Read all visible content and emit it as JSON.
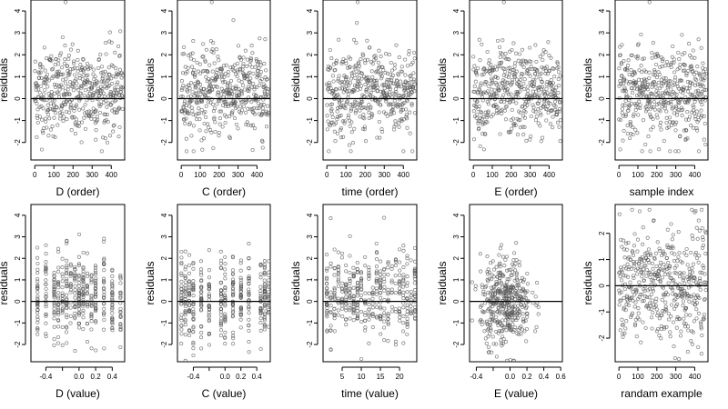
{
  "chart_data": [
    {
      "type": "scatter",
      "ylabel": "residuals",
      "xlabel": "D (order)",
      "xlim": [
        -20,
        470
      ],
      "ylim": [
        -2.8,
        4.5
      ],
      "xticks": [
        0,
        100,
        200,
        300,
        400
      ],
      "yticks": [
        -2,
        -1,
        0,
        1,
        2,
        3,
        4
      ],
      "reference_line_y": 0,
      "points": {
        "distribution": "sequential",
        "n": 460,
        "x_range": [
          0,
          460
        ],
        "y_mean": 0.3,
        "y_sd": 1.0,
        "y_min": -2.4,
        "y_max": 4.4
      }
    },
    {
      "type": "scatter",
      "ylabel": "residuals",
      "xlabel": "C (order)",
      "xlim": [
        -20,
        470
      ],
      "ylim": [
        -2.8,
        4.5
      ],
      "xticks": [
        0,
        100,
        200,
        300,
        400
      ],
      "yticks": [
        -2,
        -1,
        0,
        1,
        2,
        3,
        4
      ],
      "reference_line_y": 0,
      "points": {
        "distribution": "sequential",
        "n": 460,
        "x_range": [
          0,
          460
        ],
        "y_mean": 0.3,
        "y_sd": 1.0,
        "y_min": -2.4,
        "y_max": 4.4
      }
    },
    {
      "type": "scatter",
      "ylabel": "residuals",
      "xlabel": "time (order)",
      "xlim": [
        -20,
        470
      ],
      "ylim": [
        -2.8,
        4.5
      ],
      "xticks": [
        0,
        100,
        200,
        300,
        400
      ],
      "yticks": [
        -2,
        -1,
        0,
        1,
        2,
        3,
        4
      ],
      "reference_line_y": 0,
      "points": {
        "distribution": "sequential",
        "n": 460,
        "x_range": [
          0,
          460
        ],
        "y_mean": 0.3,
        "y_sd": 1.0,
        "y_min": -2.4,
        "y_max": 4.4
      }
    },
    {
      "type": "scatter",
      "ylabel": "residuals",
      "xlabel": "E (order)",
      "xlim": [
        -20,
        470
      ],
      "ylim": [
        -2.8,
        4.5
      ],
      "xticks": [
        0,
        100,
        200,
        300,
        400
      ],
      "yticks": [
        -2,
        -1,
        0,
        1,
        2,
        3,
        4
      ],
      "reference_line_y": 0,
      "points": {
        "distribution": "sequential",
        "n": 460,
        "x_range": [
          0,
          460
        ],
        "y_mean": 0.3,
        "y_sd": 1.0,
        "y_min": -2.4,
        "y_max": 4.4
      }
    },
    {
      "type": "scatter",
      "ylabel": "residuals",
      "xlabel": "sample index",
      "xlim": [
        -20,
        470
      ],
      "ylim": [
        -2.8,
        4.5
      ],
      "xticks": [
        0,
        100,
        200,
        300,
        400
      ],
      "yticks": [
        -2,
        -1,
        0,
        1,
        2,
        3,
        4
      ],
      "reference_line_y": 0,
      "points": {
        "distribution": "sequential",
        "n": 460,
        "x_range": [
          0,
          460
        ],
        "y_mean": 0.3,
        "y_sd": 1.0,
        "y_min": -2.4,
        "y_max": 4.4
      }
    },
    {
      "type": "scatter",
      "ylabel": "residuals",
      "xlabel": "D (value)",
      "xlim": [
        -0.58,
        0.55
      ],
      "ylim": [
        -2.8,
        4.5
      ],
      "xticks": [
        -0.4,
        -0.2,
        0.0,
        0.2,
        0.4
      ],
      "xtick_labels": [
        "-0.4",
        "",
        "0.0",
        "0.2",
        "0.4"
      ],
      "yticks": [
        -2,
        -1,
        0,
        1,
        2,
        3,
        4
      ],
      "reference_line_y": 0,
      "points": {
        "distribution": "columns",
        "n": 420,
        "x_range": [
          -0.5,
          0.5
        ],
        "columns": [
          -0.5,
          -0.4,
          -0.3,
          -0.25,
          -0.2,
          -0.15,
          -0.1,
          -0.05,
          0.0,
          0.05,
          0.1,
          0.15,
          0.2,
          0.3,
          0.4,
          0.5
        ],
        "y_mean": 0.2,
        "y_sd": 1.0
      }
    },
    {
      "type": "scatter",
      "ylabel": "residuals",
      "xlabel": "C (value)",
      "xlim": [
        -0.6,
        0.57
      ],
      "ylim": [
        -2.8,
        4.5
      ],
      "xticks": [
        -0.4,
        -0.2,
        0.0,
        0.2,
        0.4
      ],
      "xtick_labels": [
        "-0.4",
        "",
        "0.0",
        "0.2",
        "0.4"
      ],
      "yticks": [
        -2,
        -1,
        0,
        1,
        2,
        3,
        4
      ],
      "reference_line_y": 0,
      "points": {
        "distribution": "columns",
        "n": 420,
        "x_range": [
          -0.55,
          0.55
        ],
        "columns": [
          -0.55,
          -0.5,
          -0.45,
          -0.4,
          -0.3,
          -0.2,
          -0.05,
          0.0,
          0.1,
          0.2,
          0.3,
          0.45,
          0.5,
          0.55
        ],
        "y_mean": 0.2,
        "y_sd": 1.0
      }
    },
    {
      "type": "scatter",
      "ylabel": "residuals",
      "xlabel": "time (value)",
      "xlim": [
        0,
        24.5
      ],
      "ylim": [
        -2.8,
        4.5
      ],
      "xticks": [
        5,
        10,
        15,
        20
      ],
      "yticks": [
        -2,
        -1,
        0,
        1,
        2,
        3,
        4
      ],
      "reference_line_y": 0,
      "points": {
        "distribution": "columns",
        "n": 420,
        "x_range": [
          1,
          24
        ],
        "columns": [
          1,
          2,
          3,
          4,
          5,
          6,
          7,
          8,
          9,
          10,
          11,
          12,
          13,
          14,
          15,
          16,
          17,
          18,
          19,
          20,
          21,
          22,
          23,
          24
        ],
        "y_mean": 0.3,
        "y_sd": 1.0
      }
    },
    {
      "type": "scatter",
      "ylabel": "residuals",
      "xlabel": "E (value)",
      "xlim": [
        -0.48,
        0.62
      ],
      "ylim": [
        -2.8,
        4.5
      ],
      "xticks": [
        -0.4,
        -0.2,
        0.0,
        0.2,
        0.4,
        0.6
      ],
      "xtick_labels": [
        "-0.4",
        "",
        "0.0",
        "0.2",
        "0.4",
        "0.6"
      ],
      "yticks": [
        -2,
        -1,
        0,
        1,
        2,
        3,
        4
      ],
      "reference_line_y": 0,
      "points": {
        "distribution": "cluster",
        "n": 420,
        "x_range": [
          -0.45,
          0.6
        ],
        "x_center": -0.05,
        "x_sd": 0.15,
        "y_mean": 0.0,
        "y_sd": 1.0
      }
    },
    {
      "type": "scatter",
      "ylabel": "residuals",
      "xlabel": "randam example",
      "xlim": [
        -20,
        470
      ],
      "ylim": [
        -2.9,
        3.1
      ],
      "xticks": [
        0,
        100,
        200,
        300,
        400
      ],
      "yticks": [
        -2,
        -1,
        0,
        1,
        2
      ],
      "reference_line_y": 0,
      "points": {
        "distribution": "sequential",
        "n": 460,
        "x_range": [
          0,
          460
        ],
        "y_mean": 0.0,
        "y_sd": 1.1,
        "y_min": -2.8,
        "y_max": 2.9
      }
    }
  ]
}
